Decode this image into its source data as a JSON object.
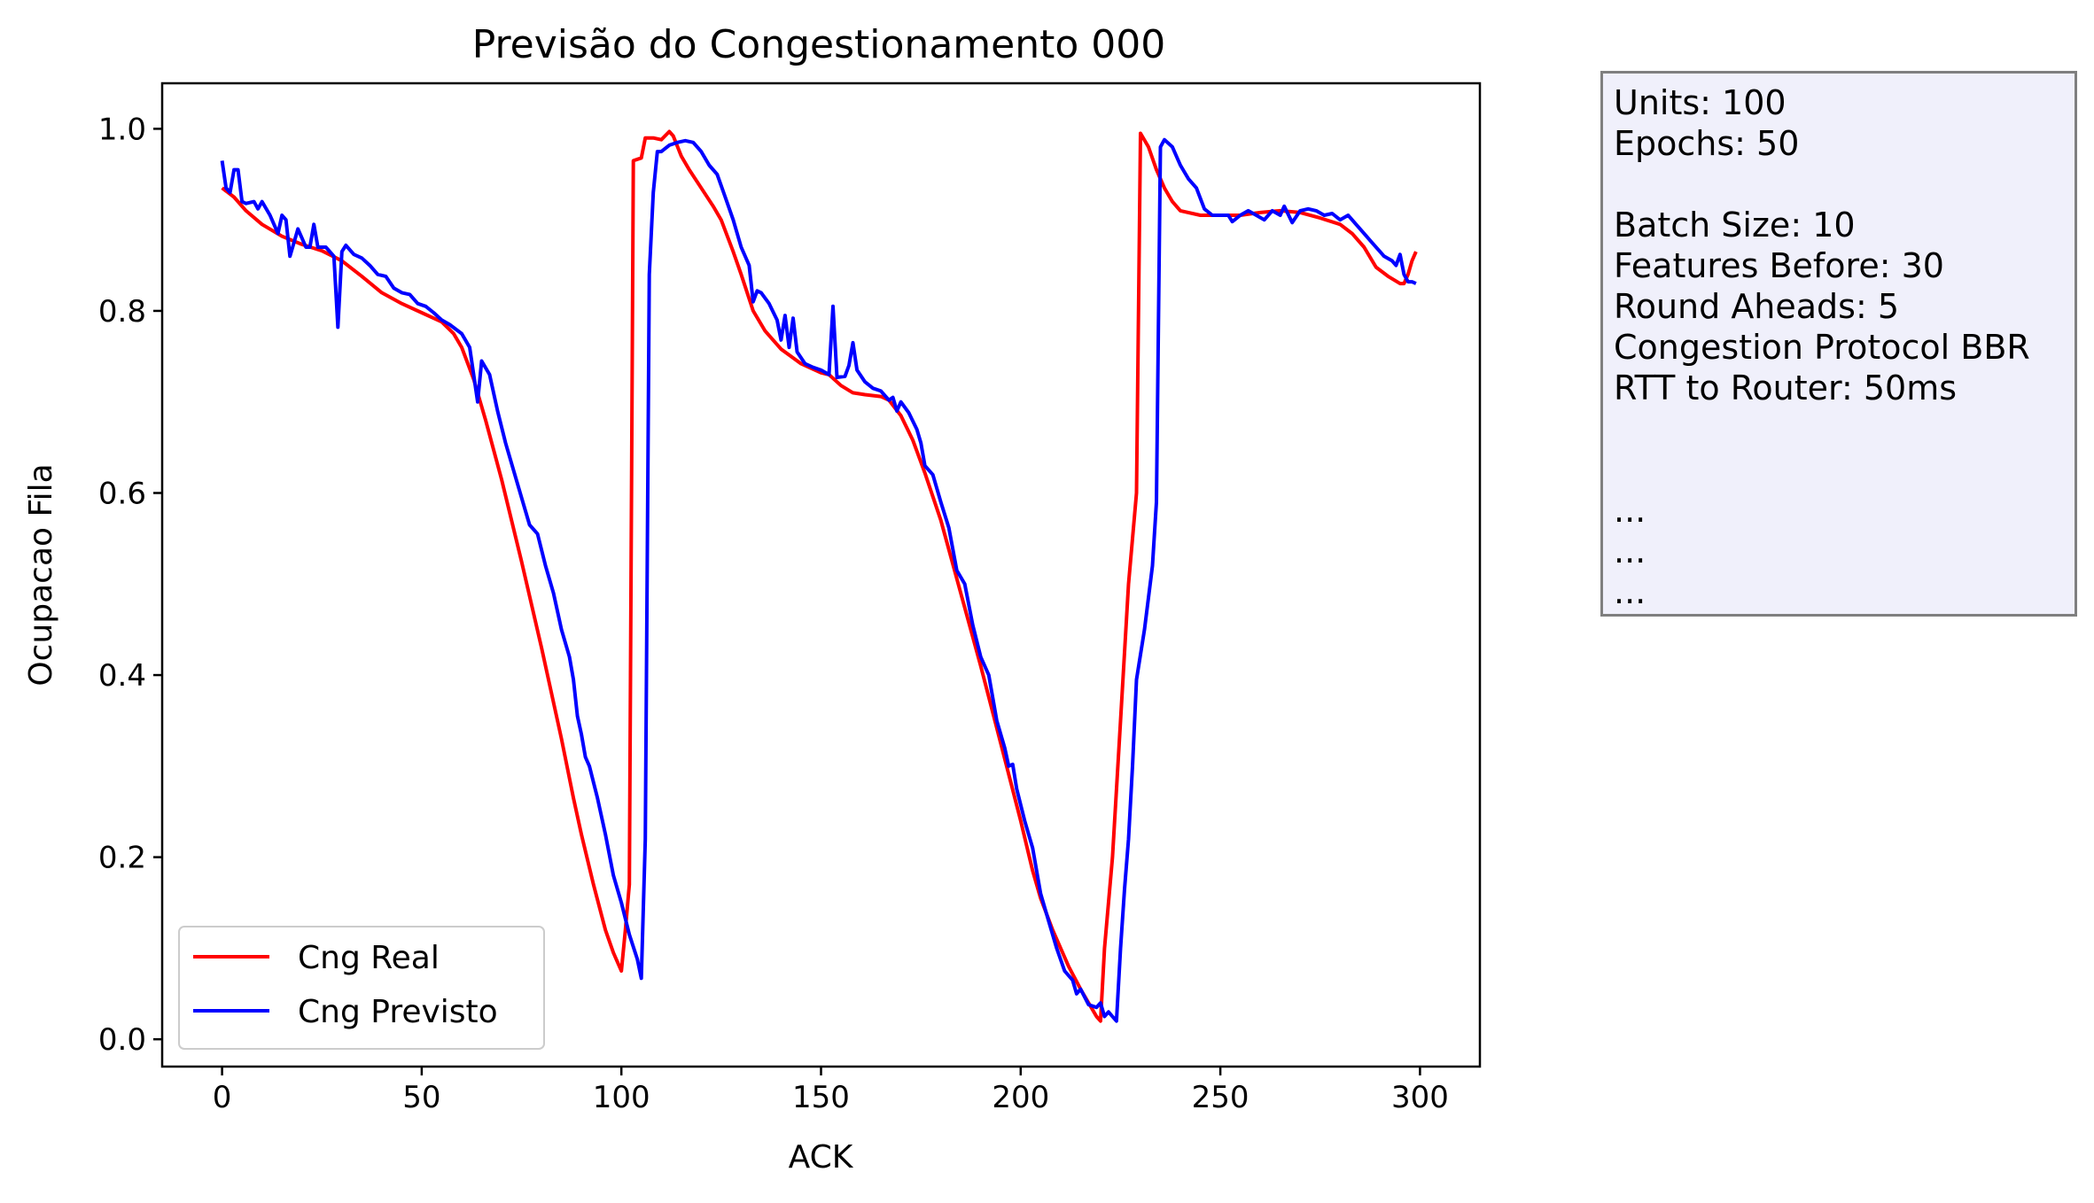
{
  "chart_data": {
    "type": "line",
    "title": "Previsão do Congestionamento 000",
    "xlabel": "ACK",
    "ylabel": "Ocupacao Fila",
    "xlim": [
      -15,
      315
    ],
    "ylim": [
      -0.03,
      1.05
    ],
    "xticks": [
      0,
      50,
      100,
      150,
      200,
      250,
      300
    ],
    "yticks": [
      0.0,
      0.2,
      0.4,
      0.6,
      0.8,
      1.0
    ],
    "xtick_labels": [
      "0",
      "50",
      "100",
      "150",
      "200",
      "250",
      "300"
    ],
    "ytick_labels": [
      "0.0",
      "0.2",
      "0.4",
      "0.6",
      "0.8",
      "1.0"
    ],
    "grid": false,
    "legend_position": "lower-left",
    "series": [
      {
        "name": "Cng Real",
        "color": "#ff0000",
        "points": [
          [
            0,
            0.935
          ],
          [
            3,
            0.925
          ],
          [
            6,
            0.91
          ],
          [
            10,
            0.895
          ],
          [
            15,
            0.882
          ],
          [
            20,
            0.873
          ],
          [
            25,
            0.866
          ],
          [
            30,
            0.855
          ],
          [
            35,
            0.838
          ],
          [
            40,
            0.82
          ],
          [
            45,
            0.808
          ],
          [
            50,
            0.798
          ],
          [
            55,
            0.788
          ],
          [
            58,
            0.775
          ],
          [
            60,
            0.76
          ],
          [
            63,
            0.725
          ],
          [
            66,
            0.68
          ],
          [
            70,
            0.615
          ],
          [
            75,
            0.525
          ],
          [
            80,
            0.43
          ],
          [
            85,
            0.33
          ],
          [
            88,
            0.265
          ],
          [
            90,
            0.225
          ],
          [
            93,
            0.17
          ],
          [
            96,
            0.12
          ],
          [
            98,
            0.095
          ],
          [
            100,
            0.075
          ],
          [
            101,
            0.12
          ],
          [
            102,
            0.17
          ],
          [
            103,
            0.965
          ],
          [
            105,
            0.968
          ],
          [
            106,
            0.99
          ],
          [
            108,
            0.99
          ],
          [
            110,
            0.988
          ],
          [
            112,
            0.997
          ],
          [
            113,
            0.992
          ],
          [
            115,
            0.97
          ],
          [
            117,
            0.955
          ],
          [
            120,
            0.935
          ],
          [
            123,
            0.915
          ],
          [
            125,
            0.9
          ],
          [
            128,
            0.865
          ],
          [
            130,
            0.84
          ],
          [
            133,
            0.8
          ],
          [
            136,
            0.778
          ],
          [
            140,
            0.758
          ],
          [
            145,
            0.742
          ],
          [
            150,
            0.732
          ],
          [
            152,
            0.73
          ],
          [
            155,
            0.718
          ],
          [
            158,
            0.71
          ],
          [
            161,
            0.708
          ],
          [
            165,
            0.706
          ],
          [
            167,
            0.702
          ],
          [
            170,
            0.685
          ],
          [
            173,
            0.658
          ],
          [
            176,
            0.622
          ],
          [
            180,
            0.57
          ],
          [
            185,
            0.49
          ],
          [
            190,
            0.41
          ],
          [
            195,
            0.325
          ],
          [
            200,
            0.24
          ],
          [
            203,
            0.185
          ],
          [
            205,
            0.155
          ],
          [
            208,
            0.12
          ],
          [
            212,
            0.08
          ],
          [
            215,
            0.055
          ],
          [
            217,
            0.04
          ],
          [
            219,
            0.025
          ],
          [
            220,
            0.02
          ],
          [
            221,
            0.1
          ],
          [
            223,
            0.2
          ],
          [
            225,
            0.35
          ],
          [
            227,
            0.5
          ],
          [
            229,
            0.6
          ],
          [
            230,
            0.995
          ],
          [
            232,
            0.98
          ],
          [
            234,
            0.955
          ],
          [
            236,
            0.935
          ],
          [
            238,
            0.92
          ],
          [
            240,
            0.91
          ],
          [
            245,
            0.905
          ],
          [
            250,
            0.905
          ],
          [
            255,
            0.905
          ],
          [
            260,
            0.908
          ],
          [
            265,
            0.91
          ],
          [
            270,
            0.908
          ],
          [
            275,
            0.902
          ],
          [
            280,
            0.895
          ],
          [
            283,
            0.885
          ],
          [
            286,
            0.87
          ],
          [
            289,
            0.848
          ],
          [
            292,
            0.838
          ],
          [
            295,
            0.83
          ],
          [
            296,
            0.83
          ],
          [
            297,
            0.84
          ],
          [
            298,
            0.855
          ],
          [
            299,
            0.865
          ]
        ]
      },
      {
        "name": "Cng Previsto",
        "color": "#0000ff",
        "points": [
          [
            0,
            0.965
          ],
          [
            1,
            0.935
          ],
          [
            2,
            0.93
          ],
          [
            3,
            0.955
          ],
          [
            4,
            0.955
          ],
          [
            5,
            0.92
          ],
          [
            6,
            0.918
          ],
          [
            8,
            0.92
          ],
          [
            9,
            0.912
          ],
          [
            10,
            0.92
          ],
          [
            12,
            0.905
          ],
          [
            14,
            0.885
          ],
          [
            15,
            0.905
          ],
          [
            16,
            0.9
          ],
          [
            17,
            0.86
          ],
          [
            18,
            0.875
          ],
          [
            19,
            0.89
          ],
          [
            20,
            0.88
          ],
          [
            21,
            0.87
          ],
          [
            22,
            0.87
          ],
          [
            23,
            0.895
          ],
          [
            24,
            0.87
          ],
          [
            26,
            0.87
          ],
          [
            28,
            0.86
          ],
          [
            29,
            0.782
          ],
          [
            30,
            0.865
          ],
          [
            31,
            0.872
          ],
          [
            33,
            0.862
          ],
          [
            35,
            0.858
          ],
          [
            37,
            0.85
          ],
          [
            39,
            0.84
          ],
          [
            41,
            0.838
          ],
          [
            43,
            0.825
          ],
          [
            45,
            0.82
          ],
          [
            47,
            0.818
          ],
          [
            49,
            0.808
          ],
          [
            51,
            0.805
          ],
          [
            53,
            0.798
          ],
          [
            55,
            0.79
          ],
          [
            57,
            0.785
          ],
          [
            60,
            0.775
          ],
          [
            62,
            0.76
          ],
          [
            64,
            0.7
          ],
          [
            65,
            0.745
          ],
          [
            67,
            0.73
          ],
          [
            69,
            0.69
          ],
          [
            71,
            0.655
          ],
          [
            73,
            0.625
          ],
          [
            75,
            0.595
          ],
          [
            77,
            0.565
          ],
          [
            79,
            0.555
          ],
          [
            81,
            0.52
          ],
          [
            83,
            0.49
          ],
          [
            85,
            0.45
          ],
          [
            87,
            0.42
          ],
          [
            88,
            0.395
          ],
          [
            89,
            0.355
          ],
          [
            90,
            0.335
          ],
          [
            91,
            0.31
          ],
          [
            92,
            0.3
          ],
          [
            94,
            0.265
          ],
          [
            96,
            0.225
          ],
          [
            98,
            0.18
          ],
          [
            100,
            0.15
          ],
          [
            102,
            0.115
          ],
          [
            104,
            0.088
          ],
          [
            105,
            0.067
          ],
          [
            106,
            0.22
          ],
          [
            107,
            0.84
          ],
          [
            108,
            0.93
          ],
          [
            109,
            0.975
          ],
          [
            110,
            0.975
          ],
          [
            112,
            0.982
          ],
          [
            114,
            0.985
          ],
          [
            116,
            0.987
          ],
          [
            118,
            0.985
          ],
          [
            120,
            0.975
          ],
          [
            122,
            0.96
          ],
          [
            124,
            0.95
          ],
          [
            126,
            0.925
          ],
          [
            128,
            0.9
          ],
          [
            130,
            0.87
          ],
          [
            132,
            0.85
          ],
          [
            133,
            0.81
          ],
          [
            134,
            0.822
          ],
          [
            135,
            0.82
          ],
          [
            137,
            0.808
          ],
          [
            139,
            0.79
          ],
          [
            140,
            0.768
          ],
          [
            141,
            0.795
          ],
          [
            142,
            0.76
          ],
          [
            143,
            0.792
          ],
          [
            144,
            0.755
          ],
          [
            146,
            0.742
          ],
          [
            148,
            0.738
          ],
          [
            150,
            0.735
          ],
          [
            152,
            0.73
          ],
          [
            153,
            0.805
          ],
          [
            154,
            0.727
          ],
          [
            156,
            0.728
          ],
          [
            157,
            0.74
          ],
          [
            158,
            0.765
          ],
          [
            159,
            0.735
          ],
          [
            161,
            0.722
          ],
          [
            163,
            0.715
          ],
          [
            165,
            0.712
          ],
          [
            167,
            0.702
          ],
          [
            168,
            0.705
          ],
          [
            169,
            0.69
          ],
          [
            170,
            0.7
          ],
          [
            172,
            0.688
          ],
          [
            174,
            0.67
          ],
          [
            175,
            0.655
          ],
          [
            176,
            0.63
          ],
          [
            178,
            0.62
          ],
          [
            180,
            0.59
          ],
          [
            182,
            0.562
          ],
          [
            184,
            0.515
          ],
          [
            186,
            0.5
          ],
          [
            188,
            0.455
          ],
          [
            190,
            0.42
          ],
          [
            192,
            0.4
          ],
          [
            194,
            0.35
          ],
          [
            196,
            0.32
          ],
          [
            197,
            0.3
          ],
          [
            198,
            0.302
          ],
          [
            199,
            0.275
          ],
          [
            201,
            0.24
          ],
          [
            203,
            0.21
          ],
          [
            205,
            0.16
          ],
          [
            207,
            0.13
          ],
          [
            209,
            0.1
          ],
          [
            211,
            0.075
          ],
          [
            213,
            0.065
          ],
          [
            214,
            0.05
          ],
          [
            215,
            0.055
          ],
          [
            217,
            0.038
          ],
          [
            219,
            0.035
          ],
          [
            220,
            0.04
          ],
          [
            221,
            0.025
          ],
          [
            222,
            0.03
          ],
          [
            223,
            0.025
          ],
          [
            224,
            0.02
          ],
          [
            225,
            0.1
          ],
          [
            226,
            0.165
          ],
          [
            227,
            0.22
          ],
          [
            228,
            0.3
          ],
          [
            229,
            0.395
          ],
          [
            231,
            0.45
          ],
          [
            233,
            0.52
          ],
          [
            234,
            0.59
          ],
          [
            235,
            0.98
          ],
          [
            236,
            0.988
          ],
          [
            238,
            0.98
          ],
          [
            240,
            0.96
          ],
          [
            242,
            0.945
          ],
          [
            244,
            0.935
          ],
          [
            246,
            0.912
          ],
          [
            248,
            0.905
          ],
          [
            250,
            0.905
          ],
          [
            252,
            0.905
          ],
          [
            253,
            0.898
          ],
          [
            255,
            0.905
          ],
          [
            257,
            0.91
          ],
          [
            259,
            0.905
          ],
          [
            261,
            0.9
          ],
          [
            263,
            0.91
          ],
          [
            265,
            0.905
          ],
          [
            266,
            0.915
          ],
          [
            268,
            0.897
          ],
          [
            270,
            0.91
          ],
          [
            272,
            0.912
          ],
          [
            274,
            0.91
          ],
          [
            276,
            0.905
          ],
          [
            278,
            0.907
          ],
          [
            280,
            0.9
          ],
          [
            282,
            0.905
          ],
          [
            284,
            0.895
          ],
          [
            286,
            0.885
          ],
          [
            288,
            0.875
          ],
          [
            290,
            0.865
          ],
          [
            291,
            0.86
          ],
          [
            293,
            0.855
          ],
          [
            294,
            0.85
          ],
          [
            295,
            0.862
          ],
          [
            296,
            0.84
          ],
          [
            297,
            0.832
          ],
          [
            298,
            0.832
          ],
          [
            299,
            0.83
          ]
        ]
      }
    ]
  },
  "info_box": {
    "lines": [
      "Units: 100",
      "Epochs: 50",
      "",
      "Batch Size: 10",
      "Features Before: 30",
      "Round Aheads: 5",
      "Congestion Protocol BBR",
      "RTT to Router: 50ms",
      "",
      "",
      "...",
      "...",
      "..."
    ],
    "background": "#f0f0fb",
    "border_color": "#7f7f7f"
  }
}
